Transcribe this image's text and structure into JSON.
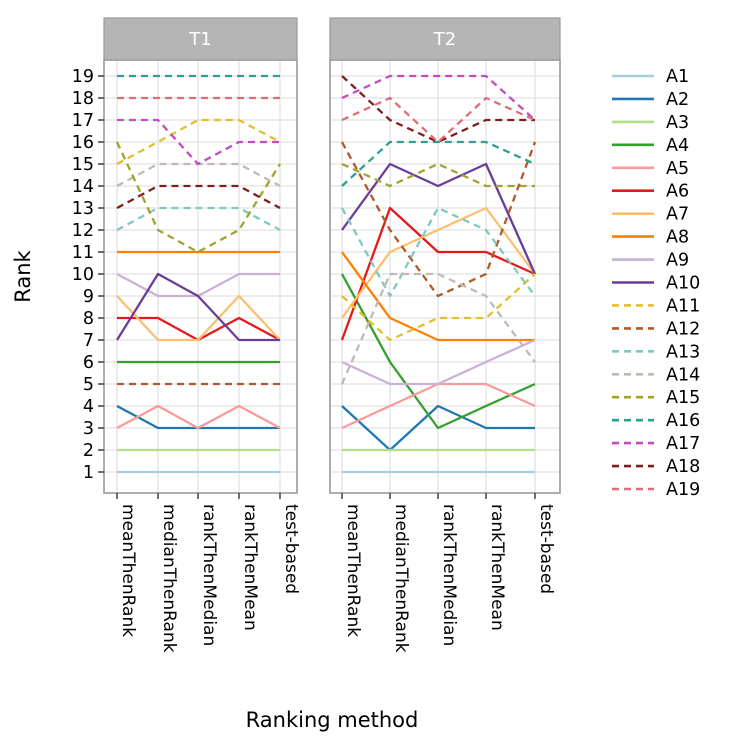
{
  "chart_data": {
    "type": "line",
    "title": "",
    "xlabel": "Ranking method",
    "ylabel": "Rank",
    "facets": [
      "T1",
      "T2"
    ],
    "categories": [
      "meanThenRank",
      "medianThenRank",
      "rankThenMedian",
      "rankThenMean",
      "test-based"
    ],
    "ylim": [
      1,
      19
    ],
    "yticks": [
      1,
      2,
      3,
      4,
      5,
      6,
      7,
      8,
      9,
      10,
      11,
      12,
      13,
      14,
      15,
      16,
      17,
      18,
      19
    ],
    "grid": "major-only",
    "legend_position": "right",
    "strip_bg": "#b5b5b5",
    "strip_text_color": "#ffffff",
    "grid_color": "#e2e2e2",
    "panel_border_color": "#9a9a9a",
    "series": [
      {
        "name": "A1",
        "color": "#a6cee3",
        "dashed": false,
        "T1": [
          1,
          1,
          1,
          1,
          1
        ],
        "T2": [
          1,
          1,
          1,
          1,
          1
        ]
      },
      {
        "name": "A2",
        "color": "#1f78b4",
        "dashed": false,
        "T1": [
          4,
          3,
          3,
          3,
          3
        ],
        "T2": [
          4,
          2,
          4,
          3,
          3
        ]
      },
      {
        "name": "A3",
        "color": "#b2df8a",
        "dashed": false,
        "T1": [
          2,
          2,
          2,
          2,
          2
        ],
        "T2": [
          2,
          2,
          2,
          2,
          2
        ]
      },
      {
        "name": "A4",
        "color": "#33a02c",
        "dashed": false,
        "T1": [
          6,
          6,
          6,
          6,
          6
        ],
        "T2": [
          10,
          6,
          3,
          4,
          5
        ]
      },
      {
        "name": "A5",
        "color": "#fb9a99",
        "dashed": false,
        "T1": [
          3,
          4,
          3,
          4,
          3
        ],
        "T2": [
          3,
          4,
          5,
          5,
          4
        ]
      },
      {
        "name": "A6",
        "color": "#e31a1c",
        "dashed": false,
        "T1": [
          8,
          8,
          7,
          8,
          7
        ],
        "T2": [
          7,
          13,
          11,
          11,
          10
        ]
      },
      {
        "name": "A7",
        "color": "#fdbf6f",
        "dashed": false,
        "T1": [
          9,
          7,
          7,
          9,
          7
        ],
        "T2": [
          8,
          11,
          12,
          13,
          10
        ]
      },
      {
        "name": "A8",
        "color": "#ff7f00",
        "dashed": false,
        "T1": [
          11,
          11,
          11,
          11,
          11
        ],
        "T2": [
          11,
          8,
          7,
          7,
          7
        ]
      },
      {
        "name": "A9",
        "color": "#cab2d6",
        "dashed": false,
        "T1": [
          10,
          9,
          9,
          10,
          10
        ],
        "T2": [
          6,
          5,
          5,
          6,
          7
        ]
      },
      {
        "name": "A10",
        "color": "#6a3d9a",
        "dashed": false,
        "T1": [
          7,
          10,
          9,
          7,
          7
        ],
        "T2": [
          12,
          15,
          14,
          15,
          10
        ]
      },
      {
        "name": "A11",
        "color": "#e0c030",
        "dashed": true,
        "T1": [
          15,
          16,
          17,
          17,
          16
        ],
        "T2": [
          9,
          7,
          8,
          8,
          10
        ]
      },
      {
        "name": "A12",
        "color": "#b15928",
        "dashed": true,
        "T1": [
          5,
          5,
          5,
          5,
          5
        ],
        "T2": [
          16,
          12,
          9,
          10,
          16
        ]
      },
      {
        "name": "A13",
        "color": "#7fc9c1",
        "dashed": true,
        "T1": [
          12,
          13,
          13,
          13,
          12
        ],
        "T2": [
          13,
          9,
          13,
          12,
          9
        ]
      },
      {
        "name": "A14",
        "color": "#c2b9b3",
        "dashed": true,
        "T1": [
          14,
          15,
          15,
          15,
          14
        ],
        "T2": [
          5,
          10,
          10,
          9,
          6
        ]
      },
      {
        "name": "A15",
        "color": "#a0a42a",
        "dashed": true,
        "T1": [
          16,
          12,
          11,
          12,
          15
        ],
        "T2": [
          15,
          14,
          15,
          14,
          14
        ]
      },
      {
        "name": "A16",
        "color": "#2aa192",
        "dashed": true,
        "T1": [
          19,
          19,
          19,
          19,
          19
        ],
        "T2": [
          14,
          16,
          16,
          16,
          15
        ]
      },
      {
        "name": "A17",
        "color": "#c04ec0",
        "dashed": true,
        "T1": [
          17,
          17,
          15,
          16,
          16
        ],
        "T2": [
          18,
          19,
          19,
          19,
          17
        ]
      },
      {
        "name": "A18",
        "color": "#7d1f1f",
        "dashed": true,
        "T1": [
          13,
          14,
          14,
          14,
          13
        ],
        "T2": [
          19,
          17,
          16,
          17,
          17
        ]
      },
      {
        "name": "A19",
        "color": "#dd6d79",
        "dashed": true,
        "T1": [
          18,
          18,
          18,
          18,
          18
        ],
        "T2": [
          17,
          18,
          16,
          18,
          17
        ]
      }
    ]
  },
  "labels": {
    "facet_t1": "T1",
    "facet_t2": "T2",
    "y_axis_title": "Rank",
    "x_axis_title": "Ranking method"
  }
}
